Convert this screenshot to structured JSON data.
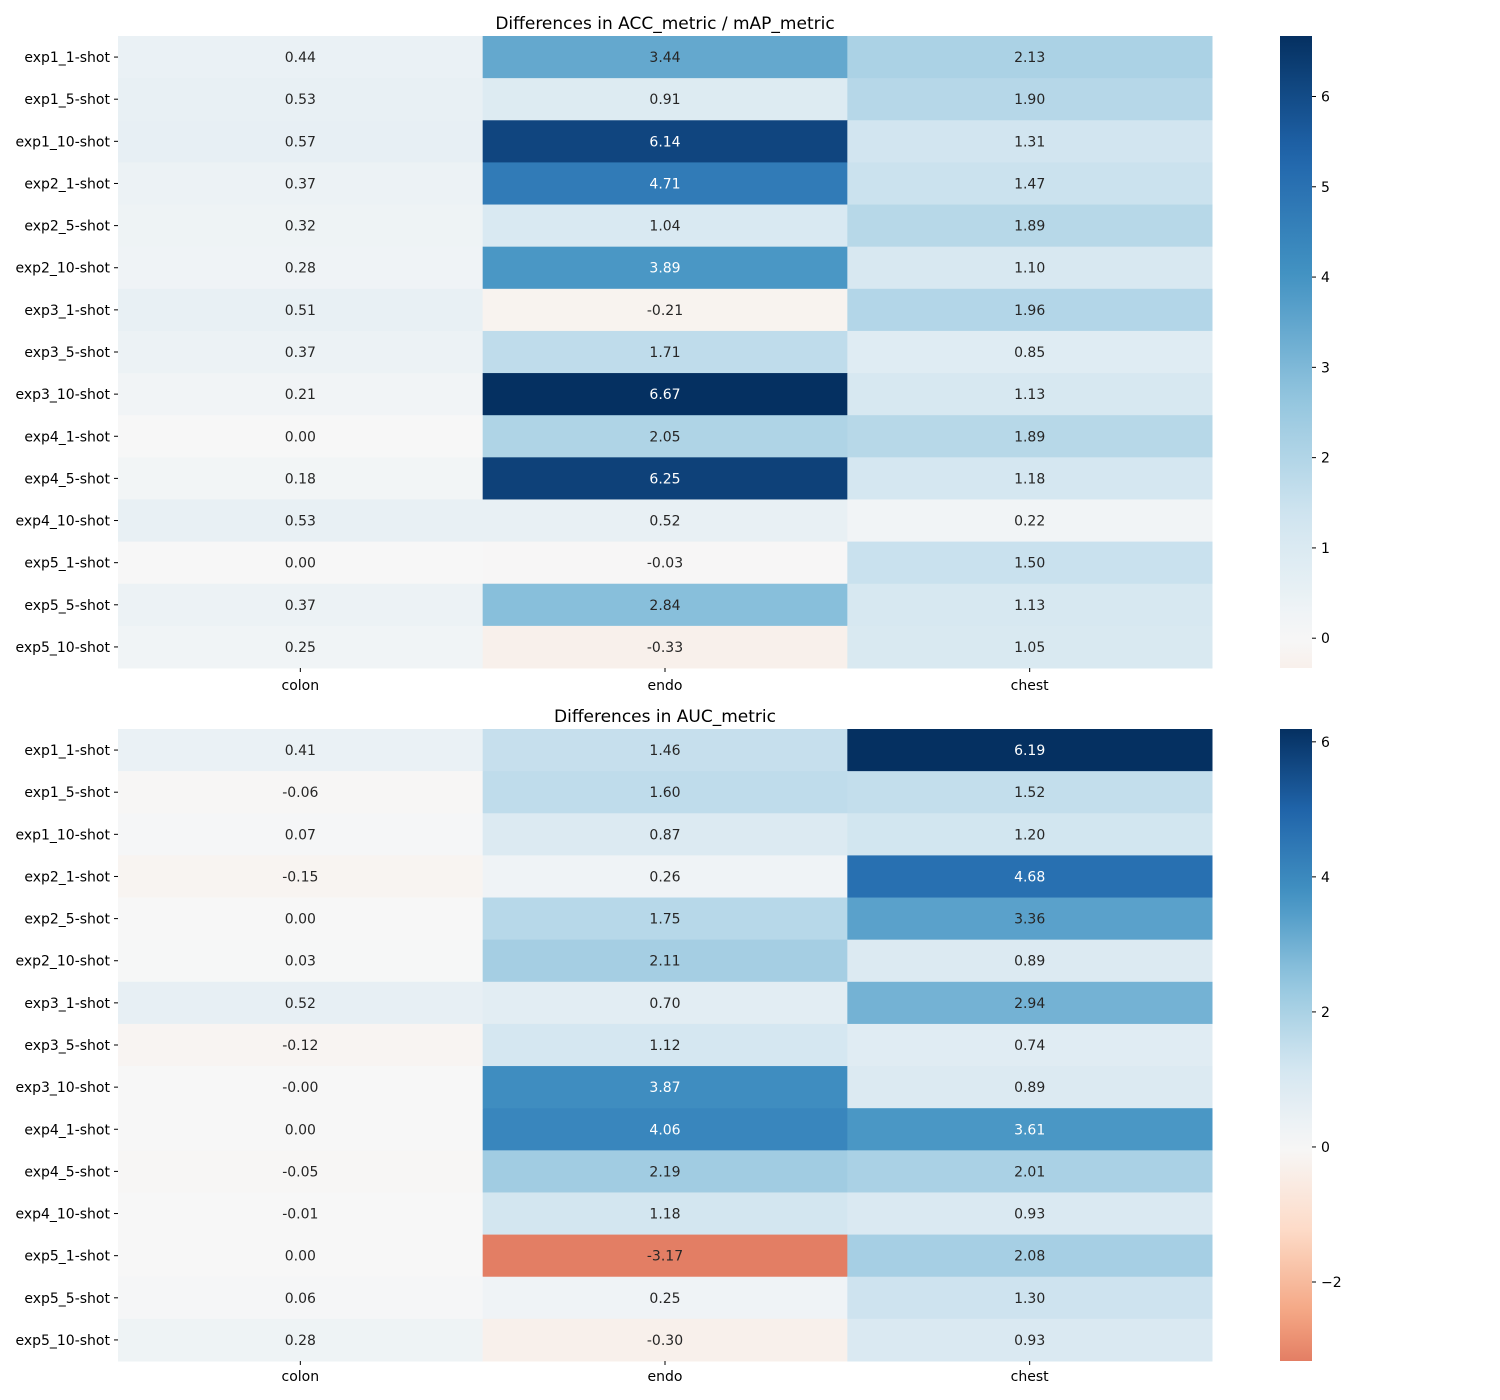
{
  "chart_data": [
    {
      "type": "heatmap",
      "title": "Differences in ACC_metric / mAP_metric",
      "rows": [
        "exp1_1-shot",
        "exp1_5-shot",
        "exp1_10-shot",
        "exp2_1-shot",
        "exp2_5-shot",
        "exp2_10-shot",
        "exp3_1-shot",
        "exp3_5-shot",
        "exp3_10-shot",
        "exp4_1-shot",
        "exp4_5-shot",
        "exp4_10-shot",
        "exp5_1-shot",
        "exp5_5-shot",
        "exp5_10-shot"
      ],
      "columns": [
        "colon",
        "endo",
        "chest"
      ],
      "values": [
        [
          0.44,
          3.44,
          2.13
        ],
        [
          0.53,
          0.91,
          1.9
        ],
        [
          0.57,
          6.14,
          1.31
        ],
        [
          0.37,
          4.71,
          1.47
        ],
        [
          0.32,
          1.04,
          1.89
        ],
        [
          0.28,
          3.89,
          1.1
        ],
        [
          0.51,
          -0.21,
          1.96
        ],
        [
          0.37,
          1.71,
          0.85
        ],
        [
          0.21,
          6.67,
          1.13
        ],
        [
          0.0,
          2.05,
          1.89
        ],
        [
          0.18,
          6.25,
          1.18
        ],
        [
          0.53,
          0.52,
          0.22
        ],
        [
          0.0,
          -0.03,
          1.5
        ],
        [
          0.37,
          2.84,
          1.13
        ],
        [
          0.25,
          -0.33,
          1.05
        ]
      ],
      "value_labels": [
        [
          "0.44",
          "3.44",
          "2.13"
        ],
        [
          "0.53",
          "0.91",
          "1.90"
        ],
        [
          "0.57",
          "6.14",
          "1.31"
        ],
        [
          "0.37",
          "4.71",
          "1.47"
        ],
        [
          "0.32",
          "1.04",
          "1.89"
        ],
        [
          "0.28",
          "3.89",
          "1.10"
        ],
        [
          "0.51",
          "-0.21",
          "1.96"
        ],
        [
          "0.37",
          "1.71",
          "0.85"
        ],
        [
          "0.21",
          "6.67",
          "1.13"
        ],
        [
          "0.00",
          "2.05",
          "1.89"
        ],
        [
          "0.18",
          "6.25",
          "1.18"
        ],
        [
          "0.53",
          "0.52",
          "0.22"
        ],
        [
          "0.00",
          "-0.03",
          "1.50"
        ],
        [
          "0.37",
          "2.84",
          "1.13"
        ],
        [
          "0.25",
          "-0.33",
          "1.05"
        ]
      ],
      "colormap": "RdBu, centered at 0",
      "color_range": [
        -6.67,
        6.67
      ],
      "colorbar": {
        "range": [
          -0.33,
          6.67
        ],
        "ticks": [
          0,
          1,
          2,
          3,
          4,
          5,
          6
        ]
      }
    },
    {
      "type": "heatmap",
      "title": "Differences in AUC_metric",
      "rows": [
        "exp1_1-shot",
        "exp1_5-shot",
        "exp1_10-shot",
        "exp2_1-shot",
        "exp2_5-shot",
        "exp2_10-shot",
        "exp3_1-shot",
        "exp3_5-shot",
        "exp3_10-shot",
        "exp4_1-shot",
        "exp4_5-shot",
        "exp4_10-shot",
        "exp5_1-shot",
        "exp5_5-shot",
        "exp5_10-shot"
      ],
      "columns": [
        "colon",
        "endo",
        "chest"
      ],
      "values": [
        [
          0.41,
          1.46,
          6.19
        ],
        [
          -0.06,
          1.6,
          1.52
        ],
        [
          0.07,
          0.87,
          1.2
        ],
        [
          -0.15,
          0.26,
          4.68
        ],
        [
          0.0,
          1.75,
          3.36
        ],
        [
          0.03,
          2.11,
          0.89
        ],
        [
          0.52,
          0.7,
          2.94
        ],
        [
          -0.12,
          1.12,
          0.74
        ],
        [
          -0.0,
          3.87,
          0.89
        ],
        [
          0.0,
          4.06,
          3.61
        ],
        [
          -0.05,
          2.19,
          2.01
        ],
        [
          -0.01,
          1.18,
          0.93
        ],
        [
          0.0,
          -3.17,
          2.08
        ],
        [
          0.06,
          0.25,
          1.3
        ],
        [
          0.28,
          -0.3,
          0.93
        ]
      ],
      "value_labels": [
        [
          "0.41",
          "1.46",
          "6.19"
        ],
        [
          "-0.06",
          "1.60",
          "1.52"
        ],
        [
          "0.07",
          "0.87",
          "1.20"
        ],
        [
          "-0.15",
          "0.26",
          "4.68"
        ],
        [
          "0.00",
          "1.75",
          "3.36"
        ],
        [
          "0.03",
          "2.11",
          "0.89"
        ],
        [
          "0.52",
          "0.70",
          "2.94"
        ],
        [
          "-0.12",
          "1.12",
          "0.74"
        ],
        [
          "-0.00",
          "3.87",
          "0.89"
        ],
        [
          "0.00",
          "4.06",
          "3.61"
        ],
        [
          "-0.05",
          "2.19",
          "2.01"
        ],
        [
          "-0.01",
          "1.18",
          "0.93"
        ],
        [
          "0.00",
          "-3.17",
          "2.08"
        ],
        [
          "0.06",
          "0.25",
          "1.30"
        ],
        [
          "0.28",
          "-0.30",
          "0.93"
        ]
      ],
      "colormap": "RdBu, centered at 0",
      "color_range": [
        -6.19,
        6.19
      ],
      "colorbar": {
        "range": [
          -3.17,
          6.19
        ],
        "ticks": [
          -2,
          0,
          2,
          4,
          6
        ]
      }
    }
  ]
}
